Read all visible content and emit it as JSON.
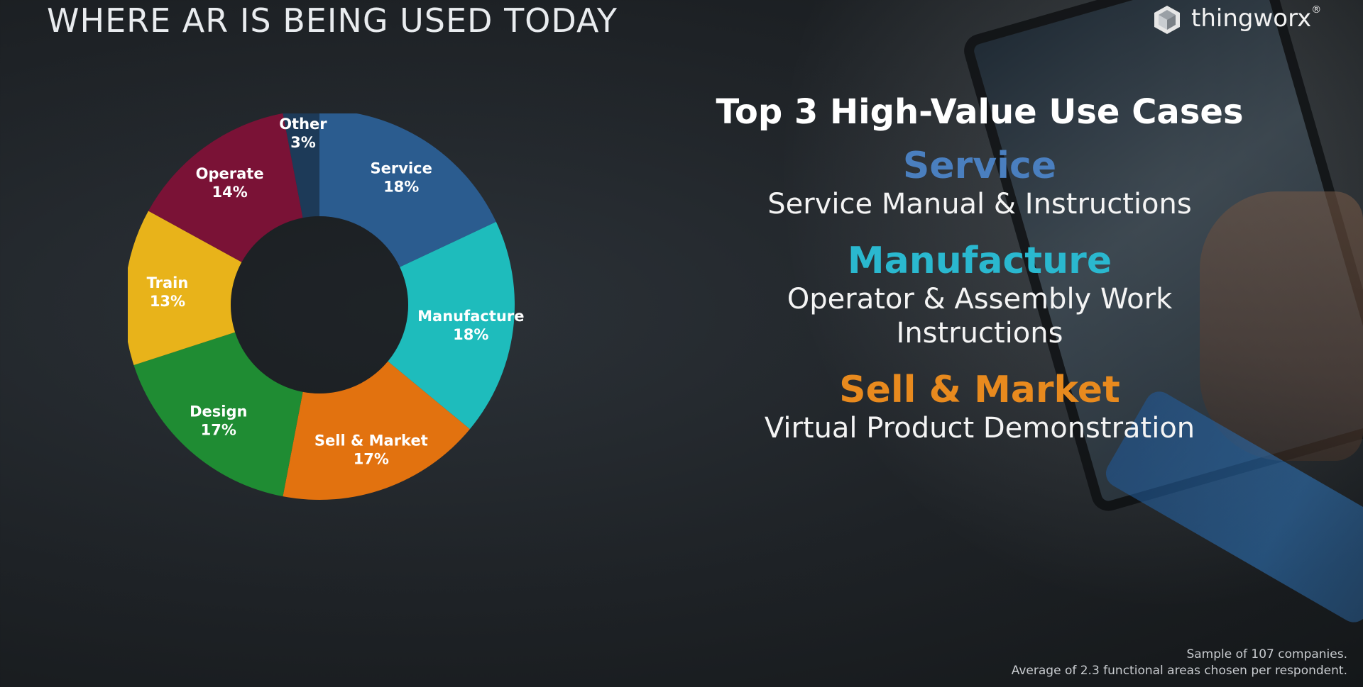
{
  "slide": {
    "title": "WHERE AR IS BEING USED TODAY",
    "logo": {
      "icon": "thingworx-cube-icon",
      "text": "thingworx",
      "mark": "®"
    }
  },
  "chart_data": {
    "type": "pie",
    "style": "donut",
    "title": "",
    "start_angle_deg": 0,
    "direction": "clockwise",
    "slices": [
      {
        "label": "Service",
        "value": 18,
        "display": "18%",
        "color": "#2b5c8f"
      },
      {
        "label": "Manufacture",
        "value": 18,
        "display": "18%",
        "color": "#1ebcbc"
      },
      {
        "label": "Sell & Market",
        "value": 17,
        "display": "17%",
        "color": "#e2720f"
      },
      {
        "label": "Design",
        "value": 17,
        "display": "17%",
        "color": "#1f8c33"
      },
      {
        "label": "Train",
        "value": 13,
        "display": "13%",
        "color": "#e8b31a"
      },
      {
        "label": "Operate",
        "value": 14,
        "display": "14%",
        "color": "#7a1236"
      },
      {
        "label": "Other",
        "value": 3,
        "display": "3%",
        "color": "#1d3a58"
      }
    ]
  },
  "panel": {
    "title": "Top 3 High-Value Use Cases",
    "use_cases": [
      {
        "category": "Service",
        "color": "#4a7fbf",
        "lines": [
          "Service Manual & Instructions"
        ]
      },
      {
        "category": "Manufacture",
        "color": "#2ab8cf",
        "lines": [
          "Operator & Assembly Work",
          "Instructions"
        ]
      },
      {
        "category": "Sell & Market",
        "color": "#e88a1e",
        "lines": [
          "Virtual Product Demonstration"
        ]
      }
    ]
  },
  "footnote": {
    "line1": "Sample of 107 companies.",
    "line2": "Average of 2.3 functional areas chosen per respondent."
  }
}
